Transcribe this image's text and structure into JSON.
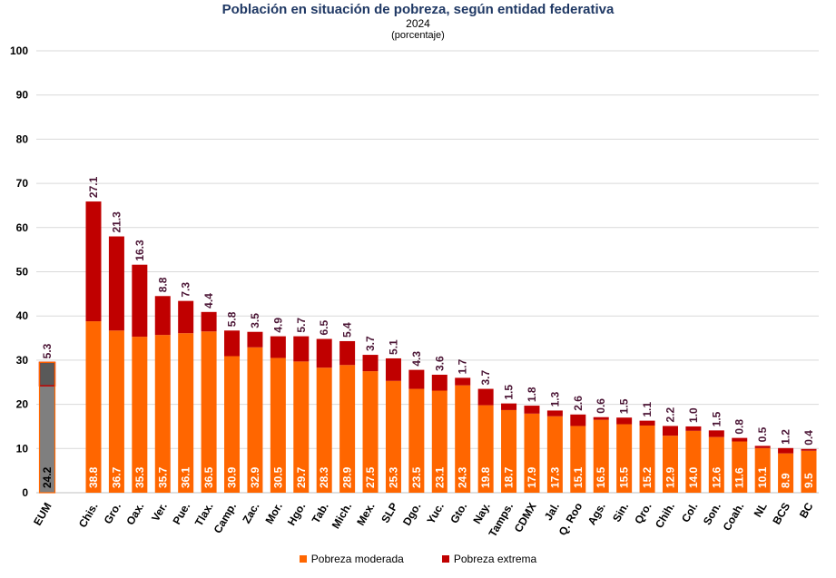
{
  "chart_data": {
    "type": "bar",
    "stacked": true,
    "title": "Población en situación de pobreza, según entidad federativa",
    "subtitle": "2024",
    "subtitle2": "(porcentaje)",
    "ylim": [
      0,
      100
    ],
    "yticks": [
      0,
      10,
      20,
      30,
      40,
      50,
      60,
      70,
      80,
      90,
      100
    ],
    "grid": true,
    "legend_position": "bottom",
    "categories": [
      "EUM",
      "Chis.",
      "Gro.",
      "Oax.",
      "Ver.",
      "Pue.",
      "Tlax.",
      "Camp.",
      "Zac.",
      "Mor.",
      "Hgo.",
      "Tab.",
      "Mich.",
      "Mex.",
      "SLP",
      "Dgo.",
      "Yuc.",
      "Gto.",
      "Nay.",
      "Tamps.",
      "CDMX",
      "Jal.",
      "Q. Roo",
      "Ags.",
      "Sin.",
      "Qro.",
      "Chih.",
      "Col.",
      "Son.",
      "Coah.",
      "NL",
      "BCS",
      "BC"
    ],
    "series": [
      {
        "name": "Pobreza moderada",
        "color": "#ff6600",
        "values": [
          24.2,
          38.8,
          36.7,
          35.3,
          35.7,
          36.1,
          36.5,
          30.9,
          32.9,
          30.5,
          29.7,
          28.3,
          28.9,
          27.5,
          25.3,
          23.5,
          23.1,
          24.3,
          19.8,
          18.7,
          17.9,
          17.3,
          15.1,
          16.5,
          15.5,
          15.2,
          12.9,
          14.0,
          12.6,
          11.6,
          10.1,
          8.9,
          9.5
        ]
      },
      {
        "name": "Pobreza extrema",
        "color": "#c00000",
        "values": [
          5.3,
          27.1,
          21.3,
          16.3,
          8.8,
          7.3,
          4.4,
          5.8,
          3.5,
          4.9,
          5.7,
          6.5,
          5.4,
          3.7,
          5.1,
          4.3,
          3.6,
          1.7,
          3.7,
          1.5,
          1.8,
          1.3,
          2.6,
          0.6,
          1.5,
          1.1,
          2.2,
          1.0,
          1.5,
          0.8,
          0.5,
          1.2,
          0.4
        ]
      }
    ],
    "highlight": {
      "category": "EUM",
      "moderate_color": "#7f7f7f",
      "extreme_color": "#595959"
    }
  }
}
